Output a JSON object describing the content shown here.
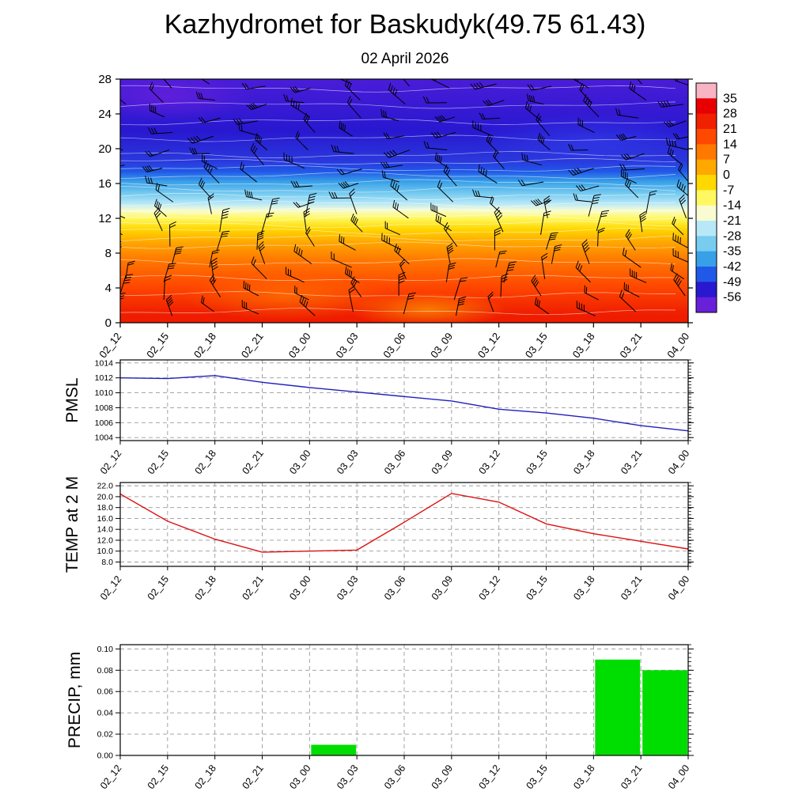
{
  "header": {
    "title": "Kazhydromet for Baskudyk(49.75 61.43)",
    "subtitle": "02 April 2026"
  },
  "time_labels": [
    "02_12",
    "02_15",
    "02_18",
    "02_21",
    "03_00",
    "03_03",
    "03_06",
    "03_09",
    "03_12",
    "03_15",
    "03_18",
    "03_21",
    "04_00"
  ],
  "chart_data": [
    {
      "type": "heatmap",
      "name": "upper-air-temperature-cross-section",
      "ylabel": "",
      "ylim": [
        0,
        28
      ],
      "y_ticks": [
        0,
        4,
        8,
        12,
        16,
        20,
        24,
        28
      ],
      "overlay": "wind-barbs and white contour lines",
      "colorbar": {
        "labels": [
          "35",
          "28",
          "21",
          "14",
          "7",
          "0",
          "-7",
          "-14",
          "-21",
          "-28",
          "-35",
          "-42",
          "-49",
          "-56"
        ],
        "colors": [
          "#f8b4c4",
          "#e80000",
          "#f02000",
          "#ff4800",
          "#ff7800",
          "#ffa800",
          "#ffd800",
          "#fff860",
          "#f8fcd0",
          "#b8e8f8",
          "#78ccf0",
          "#38a0e8",
          "#2058e8",
          "#2818d0",
          "#6820d8"
        ]
      }
    },
    {
      "type": "line",
      "name": "pmsl",
      "ylabel": "PMSL",
      "color": "#2020bb",
      "ylim": [
        1003.6,
        1014.4
      ],
      "y_ticks": [
        1004,
        1006,
        1008,
        1010,
        1012,
        1014
      ],
      "y_tick_labels": [
        "1004",
        "1006",
        "1008",
        "1010",
        "1012",
        "1014"
      ],
      "values": [
        1012.0,
        1011.9,
        1012.3,
        1011.4,
        1010.7,
        1010.1,
        1009.5,
        1008.9,
        1007.8,
        1007.3,
        1006.6,
        1005.6,
        1004.9
      ],
      "grid": true,
      "legend": "none"
    },
    {
      "type": "line",
      "name": "temp-2m",
      "ylabel": "TEMP at 2 M",
      "color": "#dd1111",
      "ylim": [
        7.2,
        22.6
      ],
      "y_ticks": [
        8,
        10,
        12,
        14,
        16,
        18,
        20,
        22
      ],
      "y_tick_labels": [
        "8.0",
        "10.0",
        "12.0",
        "14.0",
        "16.0",
        "18.0",
        "20.0",
        "22.0"
      ],
      "values": [
        20.5,
        15.5,
        12.2,
        9.8,
        10.0,
        10.2,
        15.3,
        20.6,
        19.0,
        15.0,
        13.2,
        11.8,
        10.4
      ],
      "grid": true,
      "legend": "none"
    },
    {
      "type": "bar",
      "name": "precip",
      "ylabel": "PRECIP, mm",
      "color": "#00dd00",
      "ylim": [
        0,
        0.104
      ],
      "y_ticks": [
        0,
        0.02,
        0.04,
        0.06,
        0.08,
        0.1
      ],
      "y_tick_labels": [
        "0.00",
        "0.02",
        "0.04",
        "0.06",
        "0.08",
        "0.10"
      ],
      "values": [
        0,
        0,
        0,
        0,
        0,
        0.01,
        0,
        0,
        0,
        0,
        0,
        0.09,
        0.08
      ],
      "grid": true,
      "legend": "none"
    }
  ]
}
